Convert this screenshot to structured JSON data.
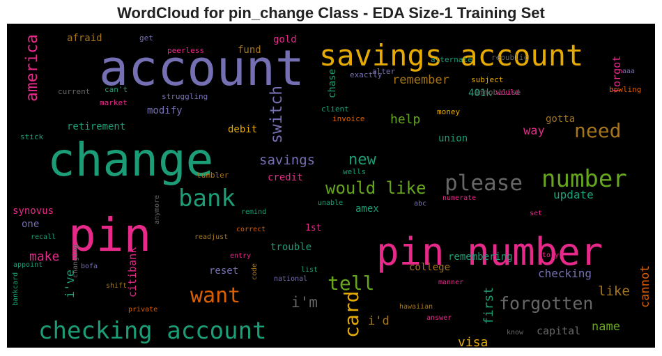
{
  "title": "WordCloud for pin_change Class - EDA Size-1 Training Set",
  "chart_data": {
    "type": "wordcloud",
    "background": "#000000",
    "palette": [
      "#1b9e77",
      "#d95f02",
      "#7570b3",
      "#e7298a",
      "#66a61e",
      "#e6ab02",
      "#a6761d",
      "#666666"
    ],
    "words": [
      {
        "text": "account",
        "color": "#7570b3"
      },
      {
        "text": "change",
        "color": "#1b9e77"
      },
      {
        "text": "pin",
        "color": "#e7298a"
      },
      {
        "text": "pin number",
        "color": "#e7298a"
      },
      {
        "text": "savings account",
        "color": "#e6ab02"
      },
      {
        "text": "checking account",
        "color": "#1b9e77"
      },
      {
        "text": "number",
        "color": "#66a61e"
      },
      {
        "text": "please",
        "color": "#666666"
      },
      {
        "text": "bank",
        "color": "#1b9e77"
      },
      {
        "text": "want",
        "color": "#d95f02"
      },
      {
        "text": "tell",
        "color": "#66a61e"
      },
      {
        "text": "card",
        "color": "#e6ab02"
      },
      {
        "text": "need",
        "color": "#a6761d"
      },
      {
        "text": "forgotten",
        "color": "#666666"
      },
      {
        "text": "would like",
        "color": "#66a61e"
      },
      {
        "text": "america",
        "color": "#e7298a"
      },
      {
        "text": "switch",
        "color": "#7570b3"
      },
      {
        "text": "savings",
        "color": "#7570b3"
      },
      {
        "text": "new",
        "color": "#1b9e77"
      },
      {
        "text": "i'm",
        "color": "#666666"
      },
      {
        "text": "help",
        "color": "#66a61e"
      },
      {
        "text": "remember",
        "color": "#a6761d"
      },
      {
        "text": "like",
        "color": "#a6761d"
      },
      {
        "text": "visa",
        "color": "#e6ab02"
      },
      {
        "text": "name",
        "color": "#66a61e"
      },
      {
        "text": "capital",
        "color": "#666666"
      },
      {
        "text": "first",
        "color": "#1b9e77"
      },
      {
        "text": "cannot",
        "color": "#d95f02"
      },
      {
        "text": "i've",
        "color": "#1b9e77"
      },
      {
        "text": "make",
        "color": "#e7298a"
      },
      {
        "text": "citibank",
        "color": "#e7298a"
      },
      {
        "text": "i'd",
        "color": "#a6761d"
      },
      {
        "text": "update",
        "color": "#1b9e77"
      },
      {
        "text": "way",
        "color": "#e7298a"
      },
      {
        "text": "forgot",
        "color": "#e7298a"
      },
      {
        "text": "checking",
        "color": "#7570b3"
      },
      {
        "text": "chase",
        "color": "#1b9e77"
      },
      {
        "text": "modify",
        "color": "#7570b3"
      },
      {
        "text": "retirement",
        "color": "#1b9e77"
      },
      {
        "text": "debit",
        "color": "#e6ab02"
      },
      {
        "text": "gotta",
        "color": "#a6761d"
      },
      {
        "text": "union",
        "color": "#1b9e77"
      },
      {
        "text": "401k",
        "color": "#1b9e77"
      },
      {
        "text": "amex",
        "color": "#1b9e77"
      },
      {
        "text": "credit",
        "color": "#e7298a"
      },
      {
        "text": "trouble",
        "color": "#1b9e77"
      },
      {
        "text": "reset",
        "color": "#7570b3"
      },
      {
        "text": "college",
        "color": "#a6761d"
      },
      {
        "text": "remembering",
        "color": "#1b9e77"
      },
      {
        "text": "synovus",
        "color": "#e7298a"
      },
      {
        "text": "one",
        "color": "#7570b3"
      },
      {
        "text": "1st",
        "color": "#e7298a"
      },
      {
        "text": "gold",
        "color": "#e7298a"
      },
      {
        "text": "fund",
        "color": "#a6761d"
      },
      {
        "text": "afraid",
        "color": "#a6761d"
      },
      {
        "text": "get",
        "color": "#7570b3"
      },
      {
        "text": "peerless",
        "color": "#e7298a"
      },
      {
        "text": "alternate",
        "color": "#1b9e77"
      },
      {
        "text": "republic",
        "color": "#666666"
      },
      {
        "text": "alter",
        "color": "#7570b3"
      },
      {
        "text": "exactly",
        "color": "#7570b3"
      },
      {
        "text": "subject",
        "color": "#e6ab02"
      },
      {
        "text": "immobilise",
        "color": "#666666"
      },
      {
        "text": "would",
        "color": "#e7298a"
      },
      {
        "text": "aaa",
        "color": "#7570b3"
      },
      {
        "text": "bowling",
        "color": "#d95f02"
      },
      {
        "text": "current",
        "color": "#666666"
      },
      {
        "text": "can't",
        "color": "#1b9e77"
      },
      {
        "text": "market",
        "color": "#e7298a"
      },
      {
        "text": "struggling",
        "color": "#7570b3"
      },
      {
        "text": "client",
        "color": "#1b9e77"
      },
      {
        "text": "invoice",
        "color": "#d95f02"
      },
      {
        "text": "money",
        "color": "#e6ab02"
      },
      {
        "text": "stick",
        "color": "#1b9e77"
      },
      {
        "text": "tumbler",
        "color": "#a6761d"
      },
      {
        "text": "wells",
        "color": "#1b9e77"
      },
      {
        "text": "numerate",
        "color": "#e7298a"
      },
      {
        "text": "remind",
        "color": "#1b9e77"
      },
      {
        "text": "unable",
        "color": "#1b9e77"
      },
      {
        "text": "abc",
        "color": "#7570b3"
      },
      {
        "text": "set",
        "color": "#e7298a"
      },
      {
        "text": "recall",
        "color": "#1b9e77"
      },
      {
        "text": "readjust",
        "color": "#a6761d"
      },
      {
        "text": "correct",
        "color": "#d95f02"
      },
      {
        "text": "anymore",
        "color": "#666666"
      },
      {
        "text": "entry",
        "color": "#e7298a"
      },
      {
        "text": "story",
        "color": "#e7298a"
      },
      {
        "text": "appoint",
        "color": "#1b9e77"
      },
      {
        "text": "bofa",
        "color": "#7570b3"
      },
      {
        "text": "shift",
        "color": "#a6761d"
      },
      {
        "text": "list",
        "color": "#1b9e77"
      },
      {
        "text": "national",
        "color": "#7570b3"
      },
      {
        "text": "manner",
        "color": "#e7298a"
      },
      {
        "text": "changing",
        "color": "#666666"
      },
      {
        "text": "private",
        "color": "#d95f02"
      },
      {
        "text": "code",
        "color": "#a6761d"
      },
      {
        "text": "hawaiian",
        "color": "#a6761d"
      },
      {
        "text": "answer",
        "color": "#e7298a"
      },
      {
        "text": "know",
        "color": "#666666"
      },
      {
        "text": "bankcard",
        "color": "#1b9e77"
      }
    ]
  }
}
